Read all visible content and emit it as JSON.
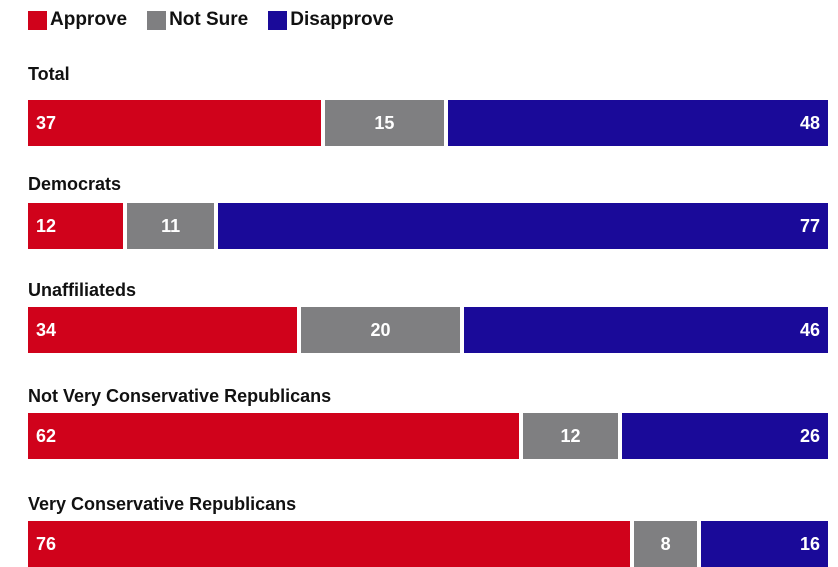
{
  "chart_data": {
    "type": "bar",
    "orientation": "horizontal-stacked",
    "categories": [
      "Total",
      "Democrats",
      "Unaffiliateds",
      "Not Very Conservative Republicans",
      "Very Conservative Republicans"
    ],
    "series": [
      {
        "name": "Approve",
        "color": "#d0021b",
        "values": [
          37,
          12,
          34,
          62,
          76
        ]
      },
      {
        "name": "Not Sure",
        "color": "#7f7f81",
        "values": [
          15,
          11,
          20,
          12,
          8
        ]
      },
      {
        "name": "Disapprove",
        "color": "#1a0a99",
        "values": [
          48,
          77,
          46,
          26,
          16
        ]
      }
    ],
    "legend_position": "top-left",
    "grid": false
  }
}
